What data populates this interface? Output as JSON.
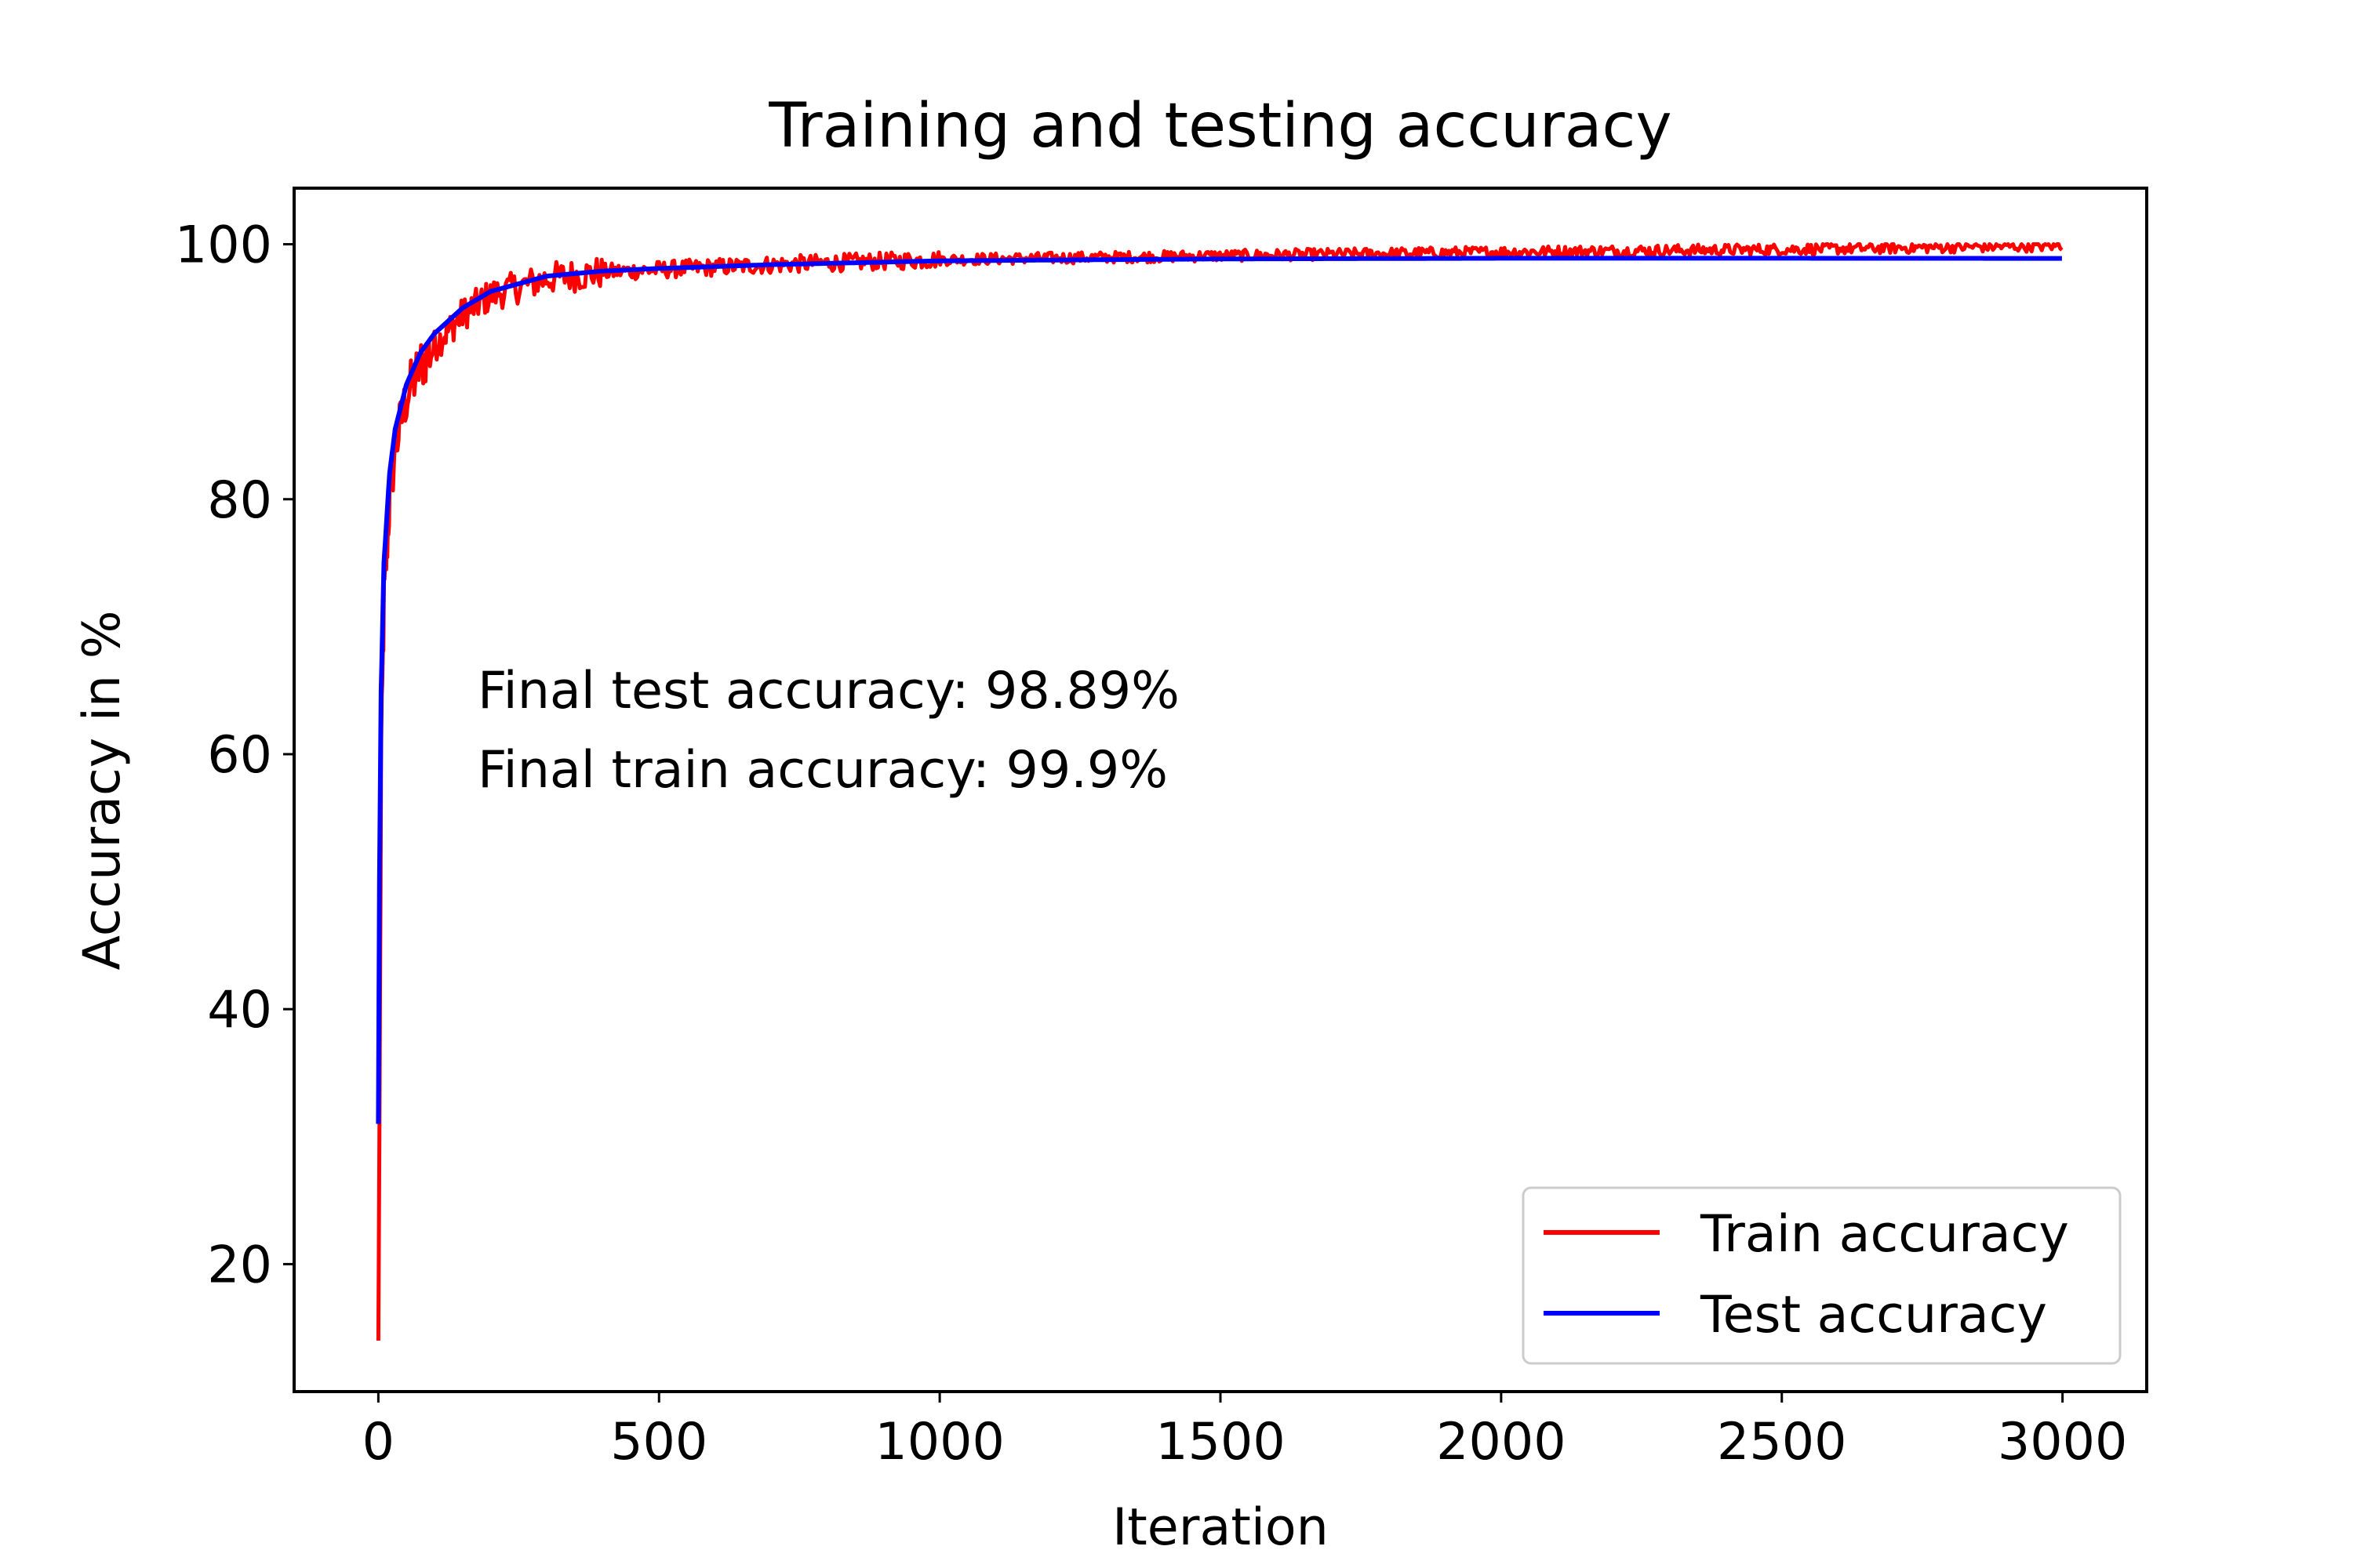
{
  "chart_data": {
    "type": "line",
    "title": "Training and testing accuracy",
    "xlabel": "Iteration",
    "ylabel": "Accuracy in %",
    "xlim": [
      -150,
      3150
    ],
    "ylim": [
      10,
      104.4
    ],
    "xticks": [
      0,
      500,
      1000,
      1500,
      2000,
      2500,
      3000
    ],
    "yticks": [
      20,
      40,
      60,
      80,
      100
    ],
    "grid": false,
    "legend_position": "lower-right",
    "annotations": [
      "Final test accuracy: 98.89%",
      "Final train accuracy: 99.9%"
    ],
    "series": [
      {
        "name": "Train accuracy",
        "color": "#ff0000",
        "noisy": true,
        "x": [
          0,
          2,
          5,
          10,
          20,
          30,
          50,
          75,
          100,
          150,
          200,
          300,
          400,
          500,
          700,
          1000,
          1500,
          2000,
          2500,
          3000
        ],
        "y": [
          14,
          31,
          60,
          72,
          80,
          84,
          88,
          90.5,
          92,
          94.5,
          96,
          97.3,
          97.8,
          98,
          98.4,
          98.8,
          99.1,
          99.4,
          99.6,
          99.9
        ]
      },
      {
        "name": "Test accuracy",
        "color": "#0000ff",
        "noisy": false,
        "x": [
          0,
          2,
          5,
          10,
          20,
          30,
          50,
          75,
          100,
          150,
          200,
          300,
          400,
          500,
          700,
          1000,
          1500,
          2000,
          2500,
          3000
        ],
        "y": [
          31,
          50,
          65,
          75,
          82,
          85.5,
          89,
          91.5,
          93,
          95,
          96.3,
          97.5,
          97.9,
          98.1,
          98.4,
          98.7,
          98.85,
          98.9,
          98.9,
          98.89
        ]
      }
    ]
  }
}
